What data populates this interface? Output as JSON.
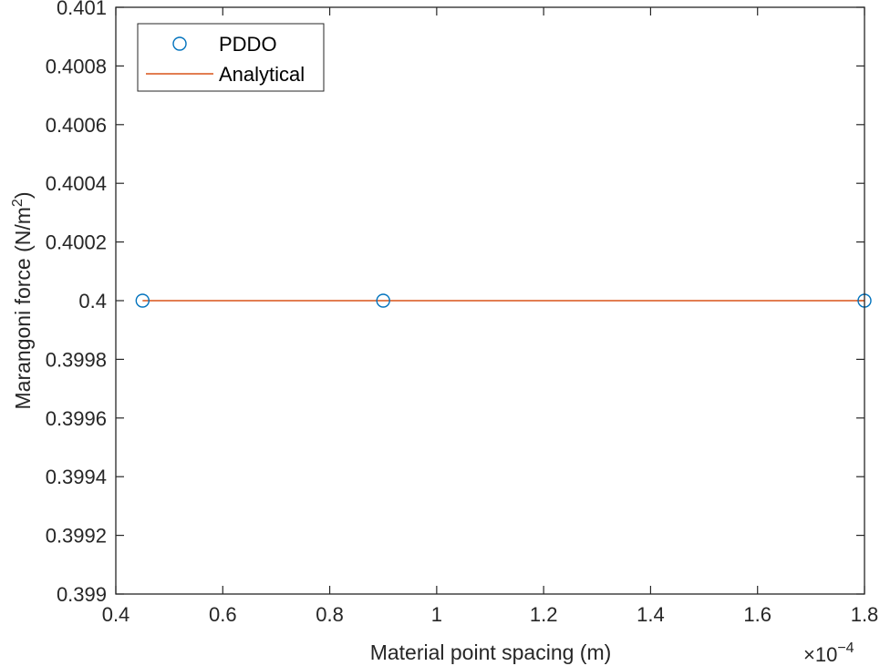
{
  "chart_data": {
    "type": "line",
    "title": "",
    "xlabel": "Material point spacing (m)",
    "ylabel_main": "Marangoni force (N/m",
    "ylabel_sup": "2",
    "ylabel_close": ")",
    "x_scale_base": "×10",
    "x_scale_exp": "−4",
    "xlim": [
      0.4,
      1.8
    ],
    "ylim": [
      0.399,
      0.401
    ],
    "x_ticks": [
      "0.4",
      "0.6",
      "0.8",
      "1",
      "1.2",
      "1.4",
      "1.6",
      "1.8"
    ],
    "y_ticks": [
      "0.399",
      "0.3992",
      "0.3994",
      "0.3996",
      "0.3998",
      "0.4",
      "0.4002",
      "0.4004",
      "0.4006",
      "0.4008",
      "0.401"
    ],
    "grid": false,
    "legend_position": "top-left",
    "series": [
      {
        "name": "PDDO",
        "style": "markers",
        "marker": "circle",
        "color": "#0072BD",
        "x": [
          0.45,
          0.9,
          1.8
        ],
        "y": [
          0.4,
          0.4,
          0.4
        ]
      },
      {
        "name": "Analytical",
        "style": "line",
        "color": "#D95319",
        "x": [
          0.45,
          1.8
        ],
        "y": [
          0.4,
          0.4
        ]
      }
    ]
  }
}
